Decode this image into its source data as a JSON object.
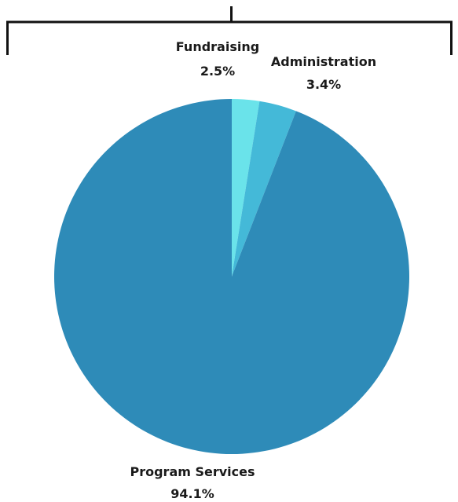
{
  "chart_data": {
    "type": "pie",
    "title": "",
    "slices": [
      {
        "label": "Fundraising",
        "value_text": "2.5%",
        "value": 2.5,
        "color": "#6ae3ea"
      },
      {
        "label": "Administration",
        "value_text": "3.4%",
        "value": 3.4,
        "color": "#44b9d8"
      },
      {
        "label": "Program Services",
        "value_text": "94.1%",
        "value": 94.1,
        "color": "#2e8bb8"
      }
    ]
  }
}
